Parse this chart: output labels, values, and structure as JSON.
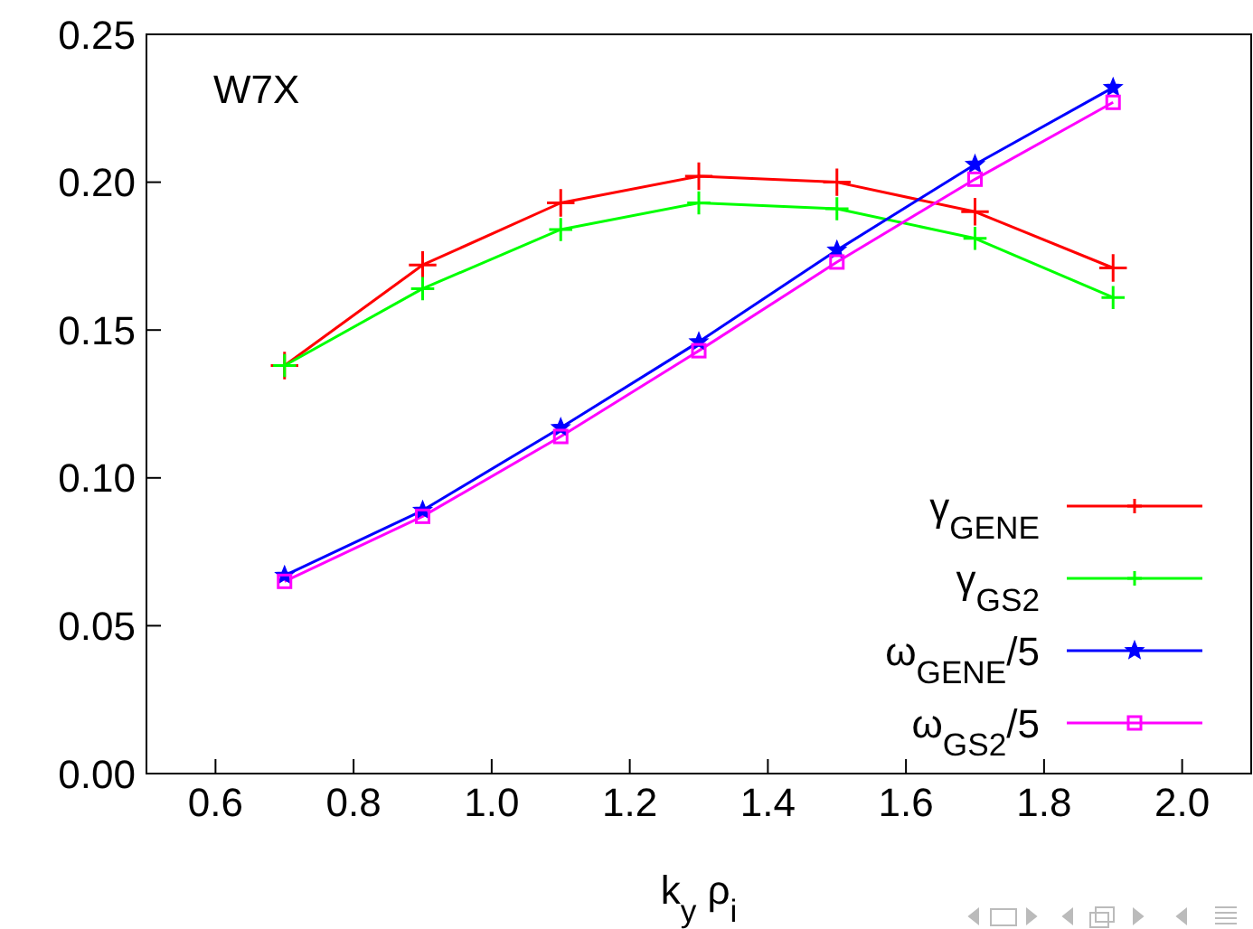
{
  "chart_data": {
    "type": "line",
    "xlabel": "k$_{y}$ ρ$_{i}$",
    "annotations": [
      "W7X"
    ],
    "x": [
      0.7,
      0.9,
      1.1,
      1.3,
      1.5,
      1.7,
      1.9
    ],
    "series": [
      {
        "name": "γ$_{GENE}$",
        "color": "#ff0000",
        "marker": "cross",
        "values": [
          0.138,
          0.172,
          0.193,
          0.202,
          0.2,
          0.19,
          0.171
        ]
      },
      {
        "name": "γ$_{GS2}$",
        "color": "#00ff00",
        "marker": "cross",
        "values": [
          0.138,
          0.164,
          0.184,
          0.193,
          0.191,
          0.181,
          0.161
        ]
      },
      {
        "name": "ω$_{GENE}$/5",
        "color": "#0000ff",
        "marker": "star",
        "values": [
          0.067,
          0.089,
          0.117,
          0.146,
          0.177,
          0.206,
          0.232
        ]
      },
      {
        "name": "ω$_{GS2}$/5",
        "color": "#ff00ff",
        "marker": "square",
        "values": [
          0.065,
          0.087,
          0.114,
          0.143,
          0.173,
          0.201,
          0.227
        ]
      }
    ],
    "xlim": [
      0.5,
      2.1
    ],
    "xticks": [
      0.6,
      0.8,
      {
        "value": 1,
        "label": "1.0"
      },
      1.2,
      1.4,
      1.6,
      1.8,
      {
        "value": 2,
        "label": "2.0"
      }
    ],
    "ylim": [
      0,
      0.25
    ],
    "yticks": [
      {
        "value": 0,
        "label": "0.00"
      },
      {
        "value": 0.05,
        "label": "0.05"
      },
      {
        "value": 0.1,
        "label": "0.10"
      },
      {
        "value": 0.15,
        "label": "0.15"
      },
      {
        "value": 0.2,
        "label": "0.20"
      },
      {
        "value": 0.25,
        "label": "0.25"
      }
    ],
    "legend": "bottom right",
    "grid": false,
    "line_style": "solid"
  }
}
